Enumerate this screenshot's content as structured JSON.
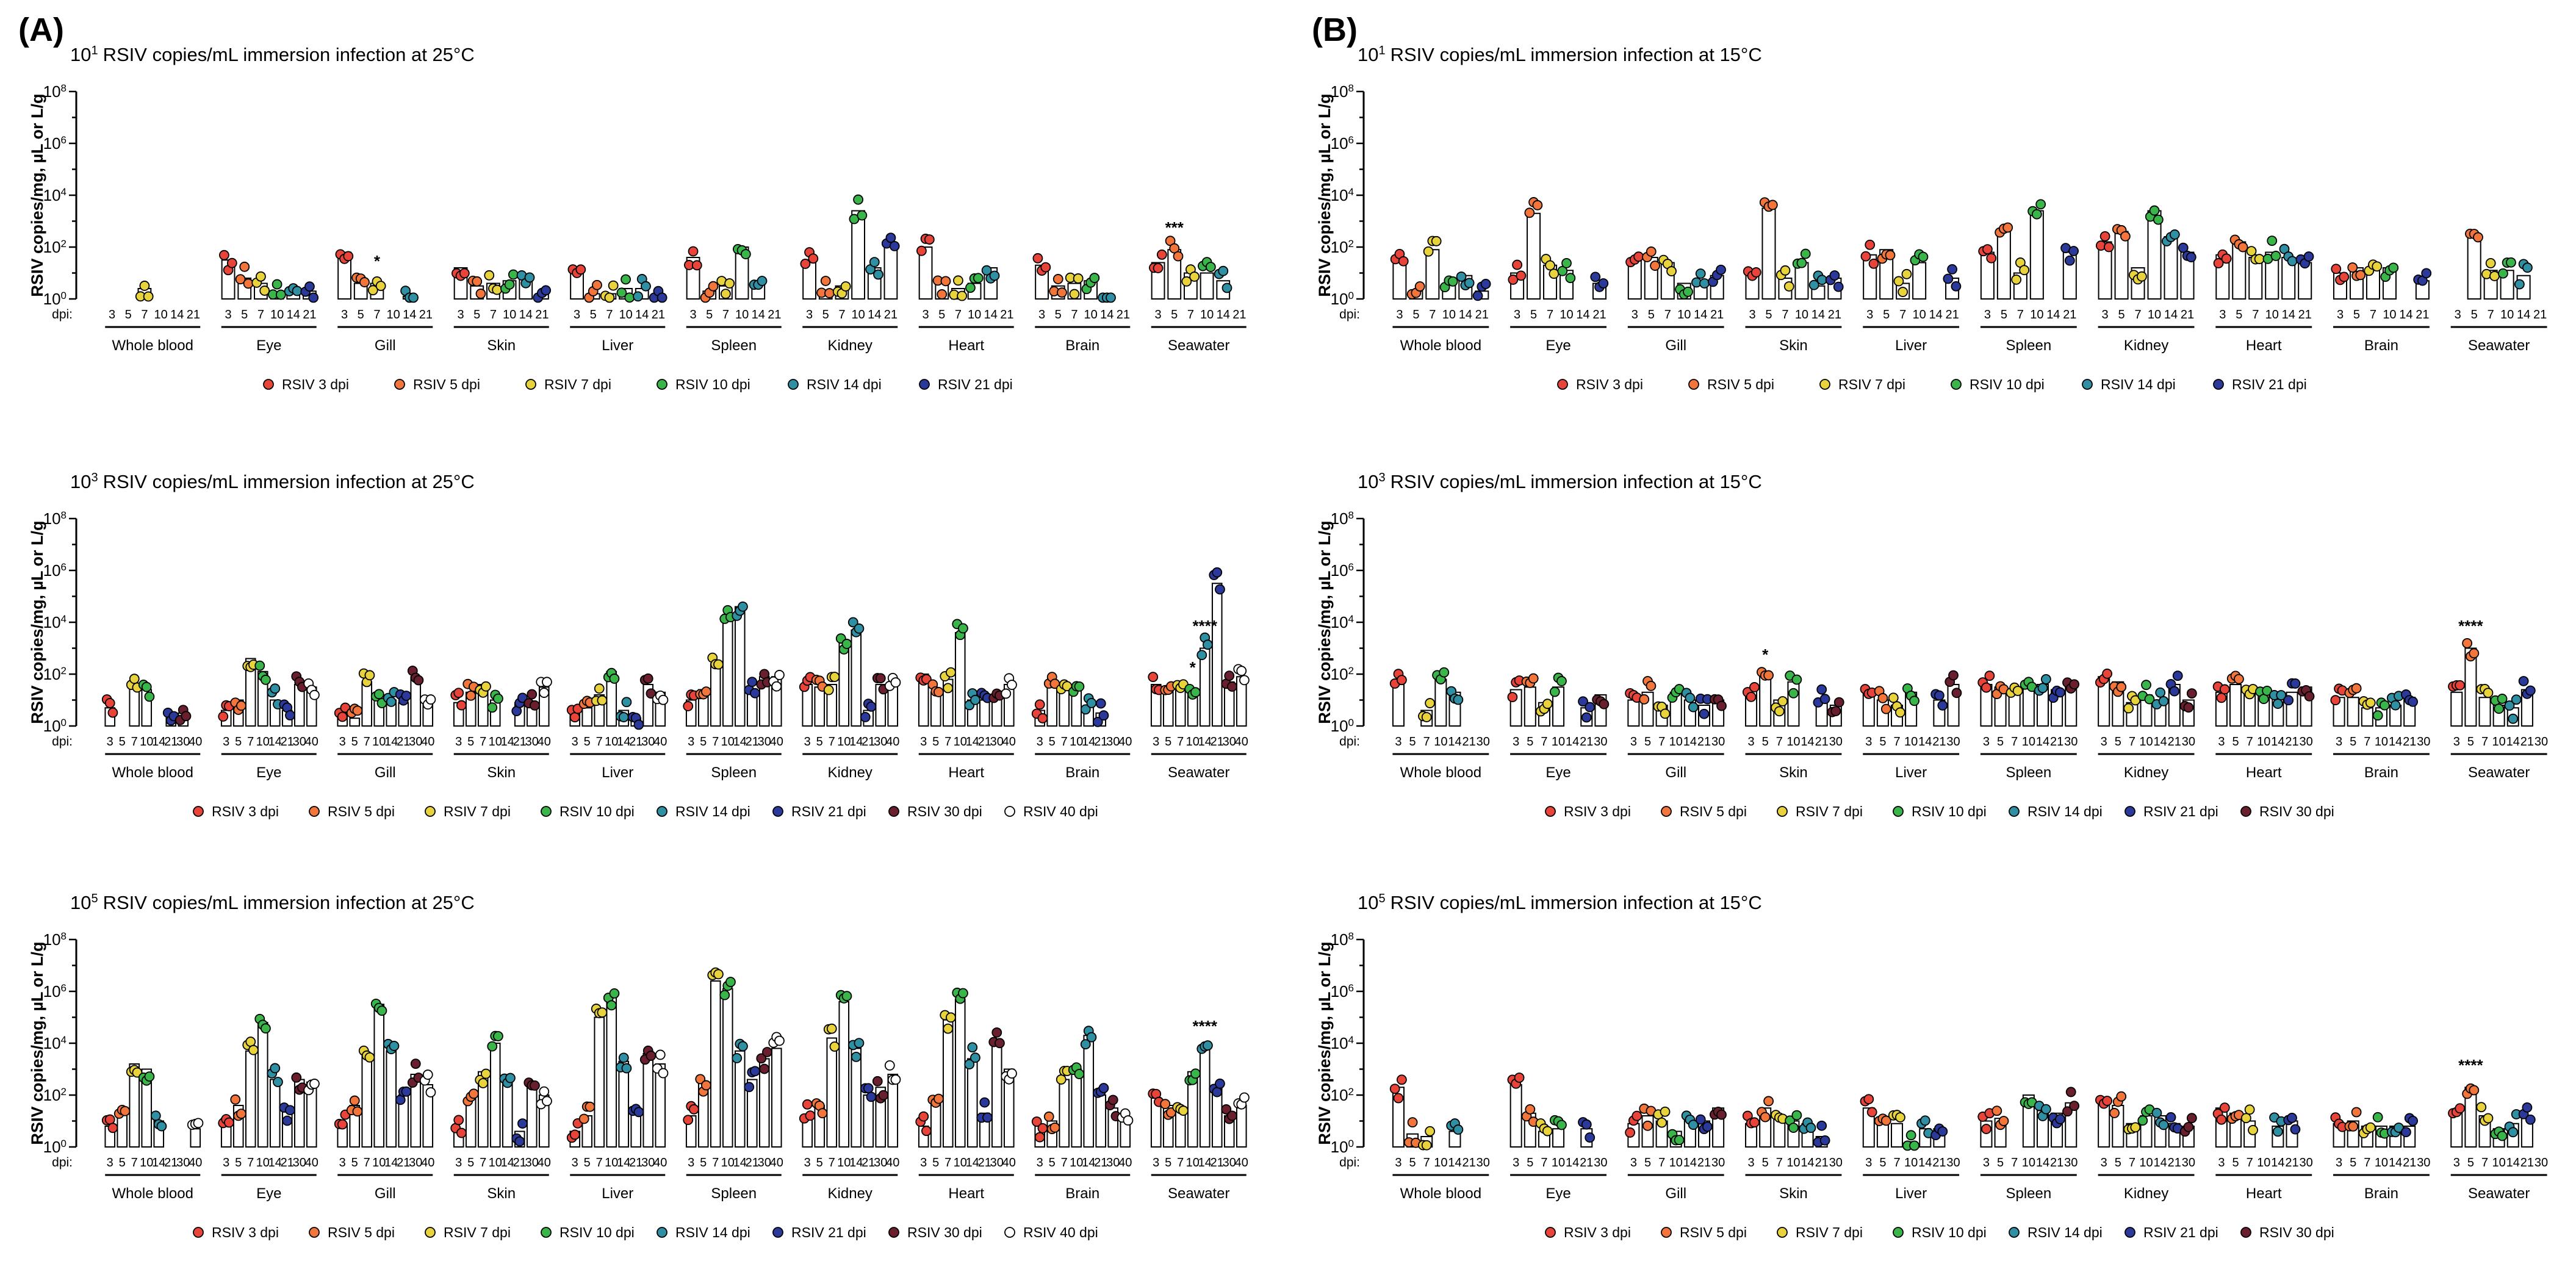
{
  "panels": [
    {
      "label": "(A)"
    },
    {
      "label": "(B)"
    }
  ],
  "colors": {
    "RSIV 3 dpi": "#e8443a",
    "RSIV 5 dpi": "#f2763b",
    "RSIV 7 dpi": "#e9d33c",
    "RSIV 10 dpi": "#39b54a",
    "RSIV 14 dpi": "#2f8fa3",
    "RSIV 21 dpi": "#2b3a9a",
    "RSIV 30 dpi": "#6a1f2e",
    "RSIV 40 dpi": "#ffffff"
  },
  "chart_data": [
    {
      "type": "bar",
      "title_exp": "1",
      "title": "RSIV copies/mL immersion infection at 25°C",
      "ylabel": "RSIV copies/mg, µL or L/g",
      "xlabel_prefix": "dpi:",
      "y_scale": "log10",
      "ylim": [
        1,
        100000000
      ],
      "yticks": [
        "10^0",
        "10^2",
        "10^4",
        "10^6",
        "10^8"
      ],
      "tissues": [
        "Whole blood",
        "Eye",
        "Gill",
        "Skin",
        "Liver",
        "Spleen",
        "Kidney",
        "Heart",
        "Brain",
        "Seawater"
      ],
      "categories": [
        "3",
        "5",
        "7",
        "10",
        "14",
        "21"
      ],
      "legend": [
        "RSIV 3 dpi",
        "RSIV 5 dpi",
        "RSIV 7 dpi",
        "RSIV 10 dpi",
        "RSIV 14 dpi",
        "RSIV 21 dpi"
      ],
      "annotations": [
        {
          "tissue": "Gill",
          "dpi": "7",
          "text": "*"
        },
        {
          "tissue": "Seawater",
          "dpi": "5",
          "text": "***"
        }
      ],
      "values_log10": [
        [
          null,
          null,
          0.4,
          null,
          null,
          null
        ],
        [
          1.5,
          0.8,
          0.6,
          0.2,
          0.2,
          0.3
        ],
        [
          1.8,
          0.6,
          0.6,
          null,
          0.1,
          null
        ],
        [
          1.2,
          0.5,
          0.6,
          0.7,
          0.8,
          0.2
        ],
        [
          1.0,
          0.2,
          0.2,
          0.4,
          0.4,
          0.1
        ],
        [
          1.6,
          0.3,
          0.5,
          2.0,
          0.6,
          null
        ],
        [
          1.5,
          0.3,
          0.5,
          3.4,
          1.2,
          2.0
        ],
        [
          2.0,
          0.6,
          0.4,
          0.6,
          1.2,
          null
        ],
        [
          1.3,
          0.5,
          0.6,
          0.7,
          0.1,
          null
        ],
        [
          1.4,
          1.9,
          1.0,
          1.0,
          0.7,
          null
        ]
      ]
    },
    {
      "type": "bar",
      "title_exp": "3",
      "title": "RSIV copies/mL immersion infection at 25°C",
      "ylabel": "RSIV copies/mg, µL or L/g",
      "xlabel_prefix": "dpi:",
      "y_scale": "log10",
      "ylim": [
        1,
        100000000
      ],
      "yticks": [
        "10^0",
        "10^2",
        "10^4",
        "10^6",
        "10^8"
      ],
      "tissues": [
        "Whole blood",
        "Eye",
        "Gill",
        "Skin",
        "Liver",
        "Spleen",
        "Kidney",
        "Heart",
        "Brain",
        "Seawater"
      ],
      "categories": [
        "3",
        "5",
        "7",
        "10",
        "14",
        "21",
        "30",
        "40"
      ],
      "legend": [
        "RSIV 3 dpi",
        "RSIV 5 dpi",
        "RSIV 7 dpi",
        "RSIV 10 dpi",
        "RSIV 14 dpi",
        "RSIV 21 dpi",
        "RSIV 30 dpi",
        "RSIV 40 dpi"
      ],
      "annotations": [
        {
          "tissue": "Seawater",
          "dpi": "10",
          "text": "*"
        },
        {
          "tissue": "Seawater",
          "dpi": "14",
          "text": "****"
        }
      ],
      "values_log10": [
        [
          0.7,
          null,
          1.5,
          1.4,
          null,
          0.3,
          0.5,
          null
        ],
        [
          0.6,
          1.0,
          2.6,
          2.1,
          1.0,
          0.6,
          1.6,
          1.5
        ],
        [
          0.5,
          0.3,
          1.7,
          1.2,
          1.0,
          0.9,
          1.9,
          0.9
        ],
        [
          0.9,
          1.3,
          1.6,
          1.0,
          null,
          0.9,
          0.9,
          1.5
        ],
        [
          0.7,
          0.7,
          1.2,
          2.1,
          0.6,
          0.3,
          1.6,
          1.3
        ],
        [
          1.0,
          1.4,
          2.4,
          4.3,
          4.6,
          1.4,
          1.9,
          1.9
        ],
        [
          1.6,
          1.5,
          1.6,
          3.2,
          3.7,
          0.6,
          1.6,
          1.6
        ],
        [
          2.0,
          1.3,
          1.8,
          3.6,
          1.0,
          1.0,
          1.2,
          1.6
        ],
        [
          0.6,
          1.5,
          1.4,
          1.5,
          0.8,
          0.5,
          null,
          null
        ],
        [
          1.6,
          1.5,
          1.4,
          1.4,
          3.0,
          5.5,
          1.7,
          1.9
        ]
      ]
    },
    {
      "type": "bar",
      "title_exp": "5",
      "title": "RSIV copies/mL immersion infection at 25°C",
      "ylabel": "RSIV copies/mg, µL or L/g",
      "xlabel_prefix": "dpi:",
      "y_scale": "log10",
      "ylim": [
        1,
        100000000
      ],
      "yticks": [
        "10^0",
        "10^2",
        "10^4",
        "10^6",
        "10^8"
      ],
      "tissues": [
        "Whole blood",
        "Eye",
        "Gill",
        "Skin",
        "Liver",
        "Spleen",
        "Kidney",
        "Heart",
        "Brain",
        "Seawater"
      ],
      "categories": [
        "3",
        "5",
        "7",
        "10",
        "14",
        "21",
        "30",
        "40"
      ],
      "legend": [
        "RSIV 3 dpi",
        "RSIV 5 dpi",
        "RSIV 7 dpi",
        "RSIV 10 dpi",
        "RSIV 14 dpi",
        "RSIV 21 dpi",
        "RSIV 30 dpi",
        "RSIV 40 dpi"
      ],
      "annotations": [
        {
          "tissue": "Seawater",
          "dpi": "14",
          "text": "****"
        }
      ],
      "values_log10": [
        [
          0.8,
          1.3,
          3.2,
          3.0,
          1.0,
          null,
          null,
          0.7
        ],
        [
          1.1,
          1.6,
          3.7,
          4.8,
          2.6,
          1.4,
          2.6,
          2.5
        ],
        [
          0.9,
          1.6,
          3.5,
          5.5,
          3.7,
          2.0,
          2.8,
          2.4
        ],
        [
          0.6,
          1.9,
          2.9,
          4.0,
          2.6,
          0.6,
          2.5,
          2.0
        ],
        [
          0.6,
          1.2,
          5.0,
          5.8,
          3.3,
          1.3,
          3.6,
          3.2
        ],
        [
          1.2,
          2.5,
          6.4,
          6.1,
          3.7,
          2.6,
          3.4,
          3.8
        ],
        [
          1.2,
          1.6,
          4.2,
          5.6,
          3.8,
          2.0,
          2.3,
          2.8
        ],
        [
          0.8,
          1.8,
          4.9,
          5.7,
          3.4,
          1.3,
          4.1,
          3.0
        ],
        [
          0.8,
          1.0,
          2.6,
          3.0,
          4.3,
          2.0,
          1.5,
          1.1
        ],
        [
          1.9,
          1.6,
          1.5,
          2.9,
          3.8,
          2.4,
          1.2,
          1.6
        ]
      ]
    },
    {
      "type": "bar",
      "title_exp": "1",
      "title": "RSIV copies/mL immersion infection at 15°C",
      "ylabel": "RSIV copies/mg, µL or L/g",
      "xlabel_prefix": "dpi:",
      "y_scale": "log10",
      "ylim": [
        1,
        100000000
      ],
      "yticks": [
        "10^0",
        "10^2",
        "10^4",
        "10^6",
        "10^8"
      ],
      "tissues": [
        "Whole blood",
        "Eye",
        "Gill",
        "Skin",
        "Liver",
        "Spleen",
        "Kidney",
        "Heart",
        "Brain",
        "Seawater"
      ],
      "categories": [
        "3",
        "5",
        "7",
        "10",
        "14",
        "21"
      ],
      "legend": [
        "RSIV 3 dpi",
        "RSIV 5 dpi",
        "RSIV 7 dpi",
        "RSIV 10 dpi",
        "RSIV 14 dpi",
        "RSIV 21 dpi"
      ],
      "annotations": [],
      "values_log10": [
        [
          1.4,
          0.3,
          1.9,
          0.6,
          0.9,
          0.3
        ],
        [
          1.0,
          3.3,
          1.3,
          1.1,
          null,
          0.6
        ],
        [
          1.5,
          1.6,
          1.4,
          0.6,
          0.6,
          0.9
        ],
        [
          1.1,
          3.5,
          0.8,
          1.4,
          0.5,
          0.8
        ],
        [
          1.7,
          1.9,
          0.6,
          1.4,
          null,
          0.8
        ],
        [
          1.8,
          2.7,
          1.0,
          3.4,
          null,
          1.8
        ],
        [
          2.2,
          2.6,
          1.2,
          3.4,
          2.4,
          1.8
        ],
        [
          1.7,
          2.2,
          1.6,
          1.8,
          1.6,
          1.4
        ],
        [
          1.0,
          1.2,
          1.1,
          1.2,
          null,
          0.7
        ],
        [
          null,
          2.5,
          1.1,
          1.1,
          0.9,
          null
        ]
      ]
    },
    {
      "type": "bar",
      "title_exp": "3",
      "title": "RSIV copies/mL immersion infection at 15°C",
      "ylabel": "RSIV copies/mg, µL or L/g",
      "xlabel_prefix": "dpi:",
      "y_scale": "log10",
      "ylim": [
        1,
        100000000
      ],
      "yticks": [
        "10^0",
        "10^2",
        "10^4",
        "10^6",
        "10^8"
      ],
      "tissues": [
        "Whole blood",
        "Eye",
        "Gill",
        "Skin",
        "Liver",
        "Spleen",
        "Kidney",
        "Heart",
        "Brain",
        "Seawater"
      ],
      "categories": [
        "3",
        "5",
        "7",
        "10",
        "14",
        "21",
        "30"
      ],
      "legend": [
        "RSIV 3 dpi",
        "RSIV 5 dpi",
        "RSIV 7 dpi",
        "RSIV 10 dpi",
        "RSIV 14 dpi",
        "RSIV 21 dpi",
        "RSIV 30 dpi"
      ],
      "annotations": [
        {
          "tissue": "Skin",
          "dpi": "5",
          "text": "*"
        },
        {
          "tissue": "Seawater",
          "dpi": "5",
          "text": "****"
        }
      ],
      "values_log10": [
        [
          1.6,
          null,
          0.6,
          1.8,
          1.3,
          null,
          null
        ],
        [
          1.4,
          1.5,
          0.9,
          1.5,
          null,
          0.7,
          1.2
        ],
        [
          1.0,
          1.3,
          0.8,
          1.3,
          1.0,
          0.8,
          1.0
        ],
        [
          1.4,
          1.9,
          1.0,
          1.7,
          null,
          1.0,
          0.8
        ],
        [
          1.4,
          1.0,
          0.8,
          1.3,
          null,
          1.0,
          1.6
        ],
        [
          1.6,
          1.5,
          1.2,
          1.6,
          1.6,
          1.4,
          1.6
        ],
        [
          1.9,
          1.7,
          0.9,
          1.2,
          0.9,
          1.6,
          1.0
        ],
        [
          1.3,
          1.6,
          1.3,
          1.2,
          1.3,
          1.3,
          1.5
        ],
        [
          1.1,
          1.1,
          0.7,
          0.7,
          0.8,
          1.1,
          null
        ],
        [
          1.3,
          3.0,
          1.1,
          0.8,
          0.7,
          1.4,
          null
        ]
      ]
    },
    {
      "type": "bar",
      "title_exp": "5",
      "title": "RSIV copies/mL immersion infection at 15°C",
      "ylabel": "RSIV copies/mg, µL or L/g",
      "xlabel_prefix": "dpi:",
      "y_scale": "log10",
      "ylim": [
        1,
        100000000
      ],
      "yticks": [
        "10^0",
        "10^2",
        "10^4",
        "10^6",
        "10^8"
      ],
      "tissues": [
        "Whole blood",
        "Eye",
        "Gill",
        "Skin",
        "Liver",
        "Spleen",
        "Kidney",
        "Heart",
        "Brain",
        "Seawater"
      ],
      "categories": [
        "3",
        "5",
        "7",
        "10",
        "14",
        "21",
        "30"
      ],
      "legend": [
        "RSIV 3 dpi",
        "RSIV 5 dpi",
        "RSIV 7 dpi",
        "RSIV 10 dpi",
        "RSIV 14 dpi",
        "RSIV 21 dpi",
        "RSIV 30 dpi"
      ],
      "annotations": [
        {
          "tissue": "Seawater",
          "dpi": "5",
          "text": "****"
        }
      ],
      "values_log10": [
        [
          2.3,
          0.5,
          0.4,
          null,
          0.6,
          null,
          null
        ],
        [
          2.4,
          1.3,
          0.6,
          0.7,
          null,
          0.7,
          null
        ],
        [
          0.9,
          1.2,
          1.0,
          0.6,
          1.0,
          1.0,
          1.5
        ],
        [
          0.9,
          1.5,
          1.1,
          1.0,
          0.9,
          0.4,
          null
        ],
        [
          1.5,
          0.9,
          0.9,
          0.2,
          0.7,
          0.7,
          null
        ],
        [
          1.0,
          1.1,
          null,
          2.0,
          1.4,
          1.3,
          1.7
        ],
        [
          1.8,
          1.6,
          0.9,
          1.2,
          1.2,
          0.9,
          0.8
        ],
        [
          1.5,
          1.3,
          1.0,
          null,
          0.8,
          1.0,
          null
        ],
        [
          0.9,
          1.0,
          0.8,
          0.8,
          0.8,
          0.8,
          null
        ],
        [
          1.4,
          2.3,
          1.2,
          0.7,
          0.9,
          1.1,
          null
        ]
      ]
    }
  ]
}
